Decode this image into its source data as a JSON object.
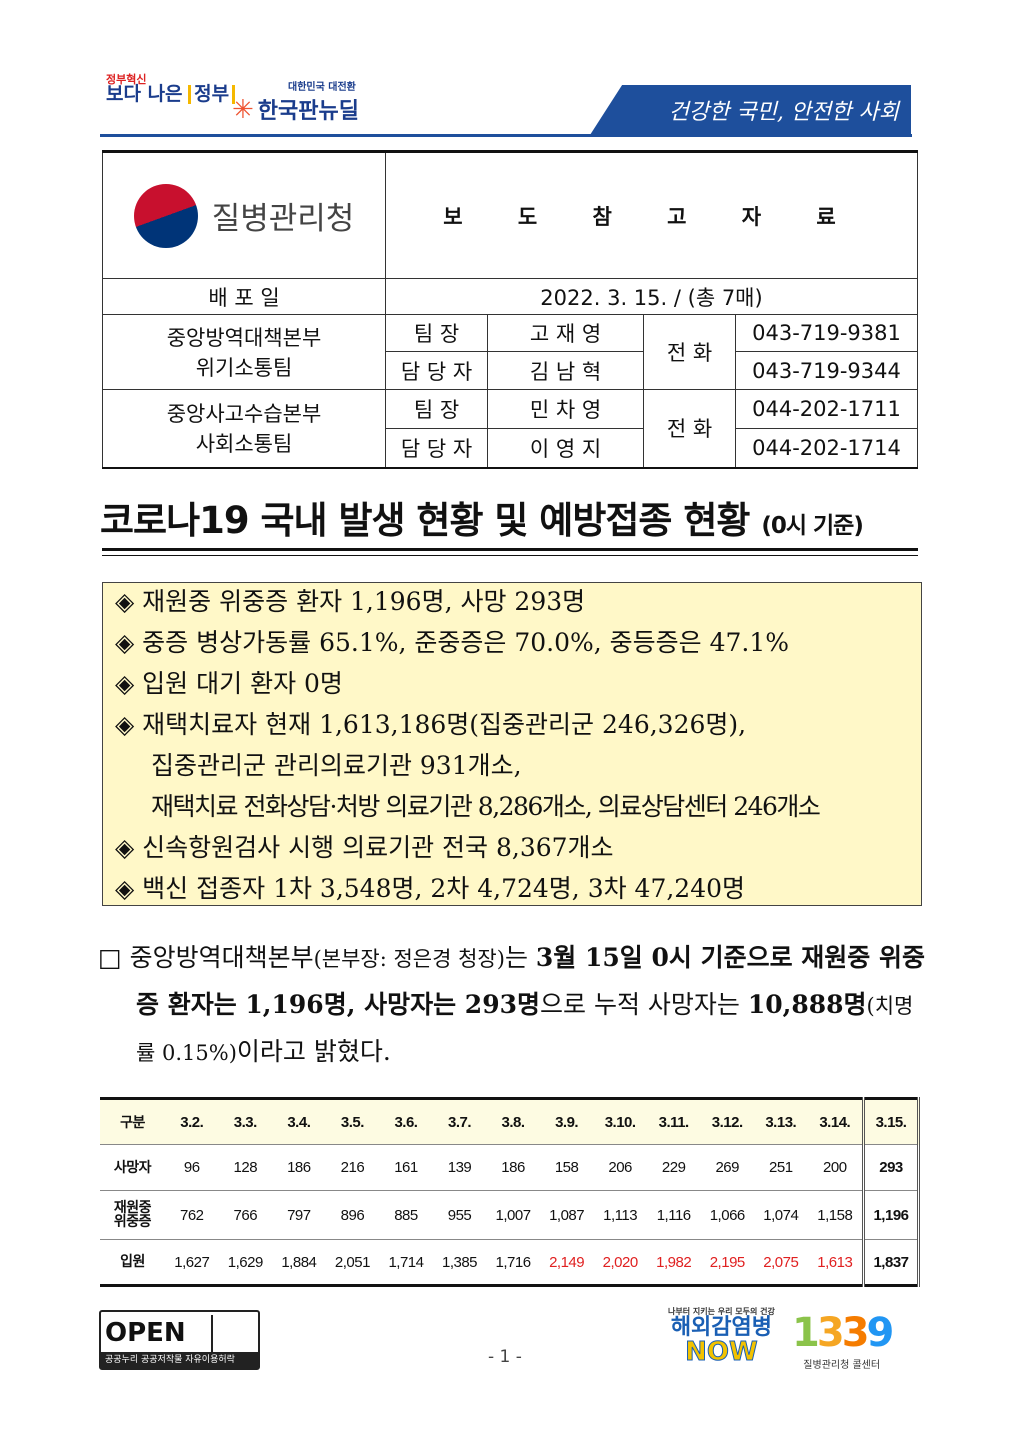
{
  "header": {
    "logo1_small": "정부혁신",
    "logo1_main": "보다 나은",
    "logo1_box": "정부",
    "logo2_small": "대한민국 대전환",
    "logo2_main": "한국판뉴딜",
    "slogan": "건강한 국민, 안전한 사회"
  },
  "info": {
    "agency": "질병관리청",
    "doc_type": "보 도 참 고 자 료",
    "dist_label": "배 포 일",
    "dist_value": "2022. 3. 15. / (총 7매)",
    "groups": [
      {
        "dept1": "중앙방역대책본부",
        "dept2": "위기소통팀",
        "phone_label": "전 화",
        "rows": [
          {
            "role": "팀 장",
            "name": "고 재 영",
            "phone": "043-719-9381"
          },
          {
            "role": "담 당 자",
            "name": "김 남 혁",
            "phone": "043-719-9344"
          }
        ]
      },
      {
        "dept1": "중앙사고수습본부",
        "dept2": "사회소통팀",
        "phone_label": "전 화",
        "rows": [
          {
            "role": "팀 장",
            "name": "민 차 영",
            "phone": "044-202-1711"
          },
          {
            "role": "담 당 자",
            "name": "이 영 지",
            "phone": "044-202-1714"
          }
        ]
      }
    ]
  },
  "title": {
    "main": "코로나19 국내 발생 현황 및 예방접종 현황",
    "sub": "(0시 기준)"
  },
  "summary": [
    "◈ 재원중 위중증 환자 1,196명, 사망 293명",
    "◈ 중증 병상가동률 65.1%, 준중증은 70.0%, 중등증은 47.1%",
    "◈ 입원 대기 환자 0명",
    "◈ 재택치료자 현재 1,613,186명(집중관리군 246,326명),",
    "집중관리군 관리의료기관 931개소,",
    "재택치료 전화상담·처방 의료기관 8,286개소, 의료상담센터 246개소",
    "◈ 신속항원검사 시행 의료기관 전국 8,367개소",
    "◈ 백신 접종자 1차 3,548명, 2차 4,724명, 3차 47,240명"
  ],
  "paragraph": {
    "p1": "□ 중앙방역대책본부",
    "p2": "(본부장: 정은경 청장)",
    "p3": "는 ",
    "p4": "3월 15일 0시 기준으로 재원중 위중증 환자는 1,196명, 사망자는 293명",
    "p5": "으로 누적 사망자는 ",
    "p6": "10,888명",
    "p7": "(치명률 0.15%)",
    "p8": "이라고 밝혔다."
  },
  "table": {
    "header": [
      "구분",
      "3.2.",
      "3.3.",
      "3.4.",
      "3.5.",
      "3.6.",
      "3.7.",
      "3.8.",
      "3.9.",
      "3.10.",
      "3.11.",
      "3.12.",
      "3.13.",
      "3.14.",
      "3.15."
    ],
    "rows": [
      {
        "label": "사망자",
        "values": [
          "96",
          "128",
          "186",
          "216",
          "161",
          "139",
          "186",
          "158",
          "206",
          "229",
          "269",
          "251",
          "200",
          "293"
        ]
      },
      {
        "label": "재원중\n위중증",
        "values": [
          "762",
          "766",
          "797",
          "896",
          "885",
          "955",
          "1,007",
          "1,087",
          "1,113",
          "1,116",
          "1,066",
          "1,074",
          "1,158",
          "1,196"
        ]
      },
      {
        "label": "입원",
        "values": [
          "1,627",
          "1,629",
          "1,884",
          "2,051",
          "1,714",
          "1,385",
          "1,716",
          "2,149",
          "2,020",
          "1,982",
          "2,195",
          "2,075",
          "1,613",
          "1,837"
        ],
        "red_from": 7,
        "red_to": 12
      }
    ],
    "red_color": "#e02020"
  },
  "footer": {
    "open": "OPEN",
    "open_sub": "공공누리 공공저작물 자유이용허락",
    "page": "- 1 -",
    "now_small": "나부터 지키는 우리 모두의 건강",
    "now_main": "해외감염병",
    "now_n": "NOW",
    "cc_num": "1339",
    "cc_sub": "질병관리청 콜센터"
  }
}
